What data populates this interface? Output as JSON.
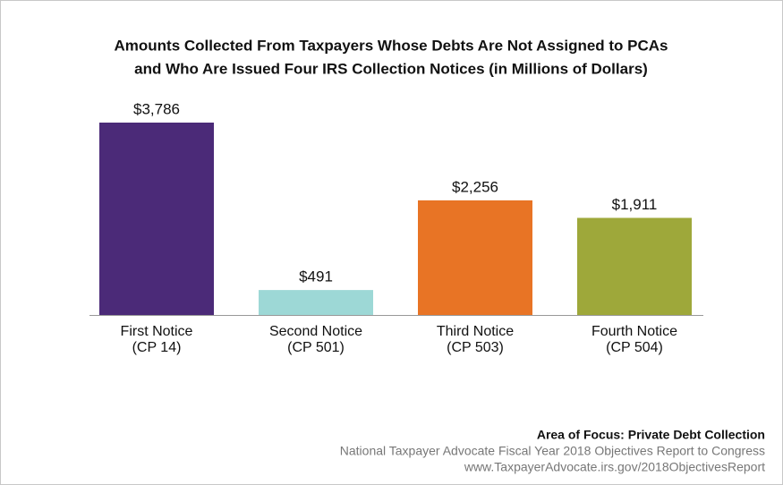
{
  "chart_data": {
    "type": "bar",
    "title": [
      "Amounts Collected From Taxpayers Whose Debts Are Not Assigned to PCAs",
      "and Who Are Issued Four IRS Collection Notices (in Millions of Dollars)"
    ],
    "categories": [
      [
        "First Notice",
        "(CP 14)"
      ],
      [
        "Second Notice",
        "(CP 501)"
      ],
      [
        "Third Notice",
        "(CP 503)"
      ],
      [
        "Fourth Notice",
        "(CP 504)"
      ]
    ],
    "values": [
      3786,
      491,
      2256,
      1911
    ],
    "value_labels": [
      "$3,786",
      "$491",
      "$2,256",
      "$1,911"
    ],
    "colors": [
      "#4b2a78",
      "#9dd8d6",
      "#e87425",
      "#9ea83a"
    ]
  },
  "footer": {
    "focus": "Area of Focus: Private Debt Collection",
    "source": [
      "National Taxpayer Advocate Fiscal Year 2018 Objectives Report to Congress",
      "www.TaxpayerAdvocate.irs.gov/2018ObjectivesReport"
    ]
  }
}
